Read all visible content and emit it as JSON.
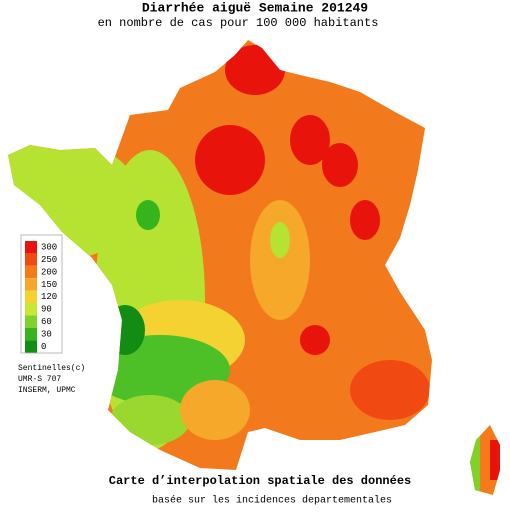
{
  "header": {
    "title": "Diarrhée aiguë Semaine 201249",
    "subtitle": "en nombre de cas pour 100 000 habitants"
  },
  "legend": {
    "values": [
      300,
      250,
      200,
      150,
      120,
      90,
      60,
      30,
      0
    ],
    "colors": [
      "#e8140c",
      "#f04a12",
      "#f57a1a",
      "#f6a82a",
      "#f3d232",
      "#c8e632",
      "#7ed22a",
      "#36b41e",
      "#138c14"
    ]
  },
  "credits": [
    "Sentinelles(c)",
    "UMR-S 707",
    "INSERM, UPMC"
  ],
  "footer": {
    "title": "Carte d’interpolation spatiale des données",
    "subtitle": "basée sur les incidences departementales"
  }
}
